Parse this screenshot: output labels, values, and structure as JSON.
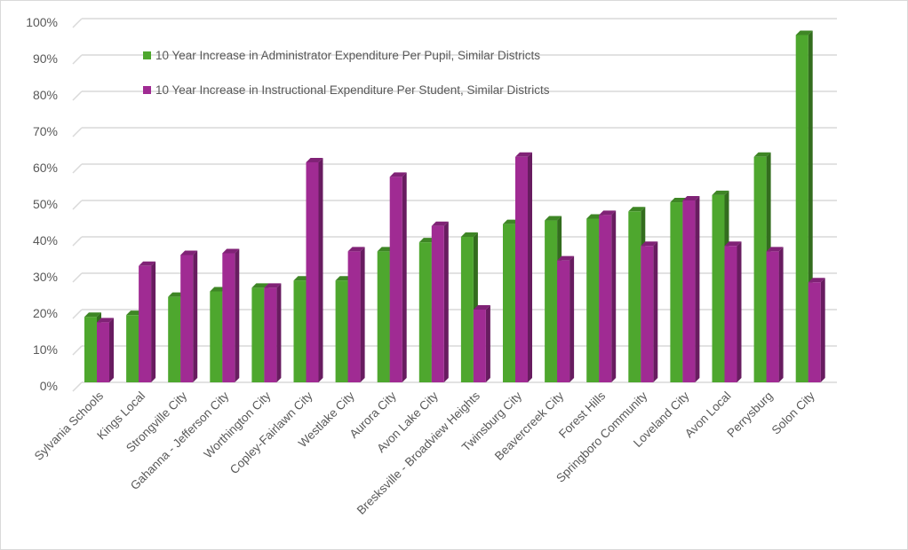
{
  "chart_data": {
    "type": "bar",
    "style": "3d-clustered-column",
    "title": "",
    "xlabel": "",
    "ylabel": "",
    "ylim": [
      0,
      100
    ],
    "yticks": [
      "0%",
      "10%",
      "20%",
      "30%",
      "40%",
      "50%",
      "60%",
      "70%",
      "80%",
      "90%",
      "100%"
    ],
    "grid": true,
    "legend_position": "top-left (inside plot)",
    "categories": [
      "Sylvania Schools",
      "Kings Local",
      "Strongville City",
      "Gahanna - Jefferson City",
      "Worthington City",
      "Copley-Fairlawn City",
      "Westlake City",
      "Aurora City",
      "Avon Lake City",
      "Bresksville - Broadview Heights",
      "Twinsburg City",
      "Beavercreek City",
      "Forest Hills",
      "Springboro Community",
      "Loveland City",
      "Avon Local",
      "Perrysburg",
      "Solon City"
    ],
    "series": [
      {
        "name": "10 Year Increase in Administrator Expenditure Per Pupil, Similar Districts",
        "color": "#4ea72e",
        "values": [
          18,
          18.5,
          23.5,
          25,
          26,
          28,
          28,
          36,
          38.5,
          40,
          43.5,
          44.5,
          45,
          47,
          49.5,
          51.5,
          62,
          95.5
        ]
      },
      {
        "name": "10 Year Increase in Instructional Expenditure Per Student, Similar Districts",
        "color": "#a02b93",
        "values": [
          16.5,
          32,
          35,
          35.5,
          26,
          60.5,
          36,
          56.5,
          43,
          20,
          62,
          33.5,
          46,
          37.5,
          50,
          37.5,
          36,
          27.5
        ]
      }
    ]
  }
}
